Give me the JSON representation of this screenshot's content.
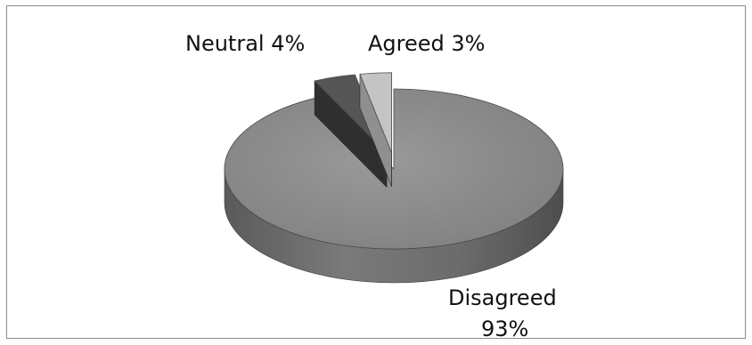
{
  "chart_data": {
    "type": "pie",
    "style": "3d-exploded",
    "slices": [
      {
        "label": "Disagreed",
        "value": 93,
        "value_label": "93%",
        "color": "#8a8a8a",
        "side_color": "#5e5e5e"
      },
      {
        "label": "Neutral",
        "value": 4,
        "value_label": "4%",
        "color": "#555555",
        "side_color": "#2f2f2f"
      },
      {
        "label": "Agreed",
        "value": 3,
        "value_label": "3%",
        "color": "#c4c4c4",
        "side_color": "#8f8f8f"
      }
    ],
    "text": {
      "disagreed_line1": "Disagreed",
      "disagreed_line2": "93%",
      "neutral": "Neutral 4%",
      "agreed": "Agreed 3%"
    },
    "legend": "none",
    "background": "#ffffff",
    "border_color": "#8c8c8c"
  }
}
